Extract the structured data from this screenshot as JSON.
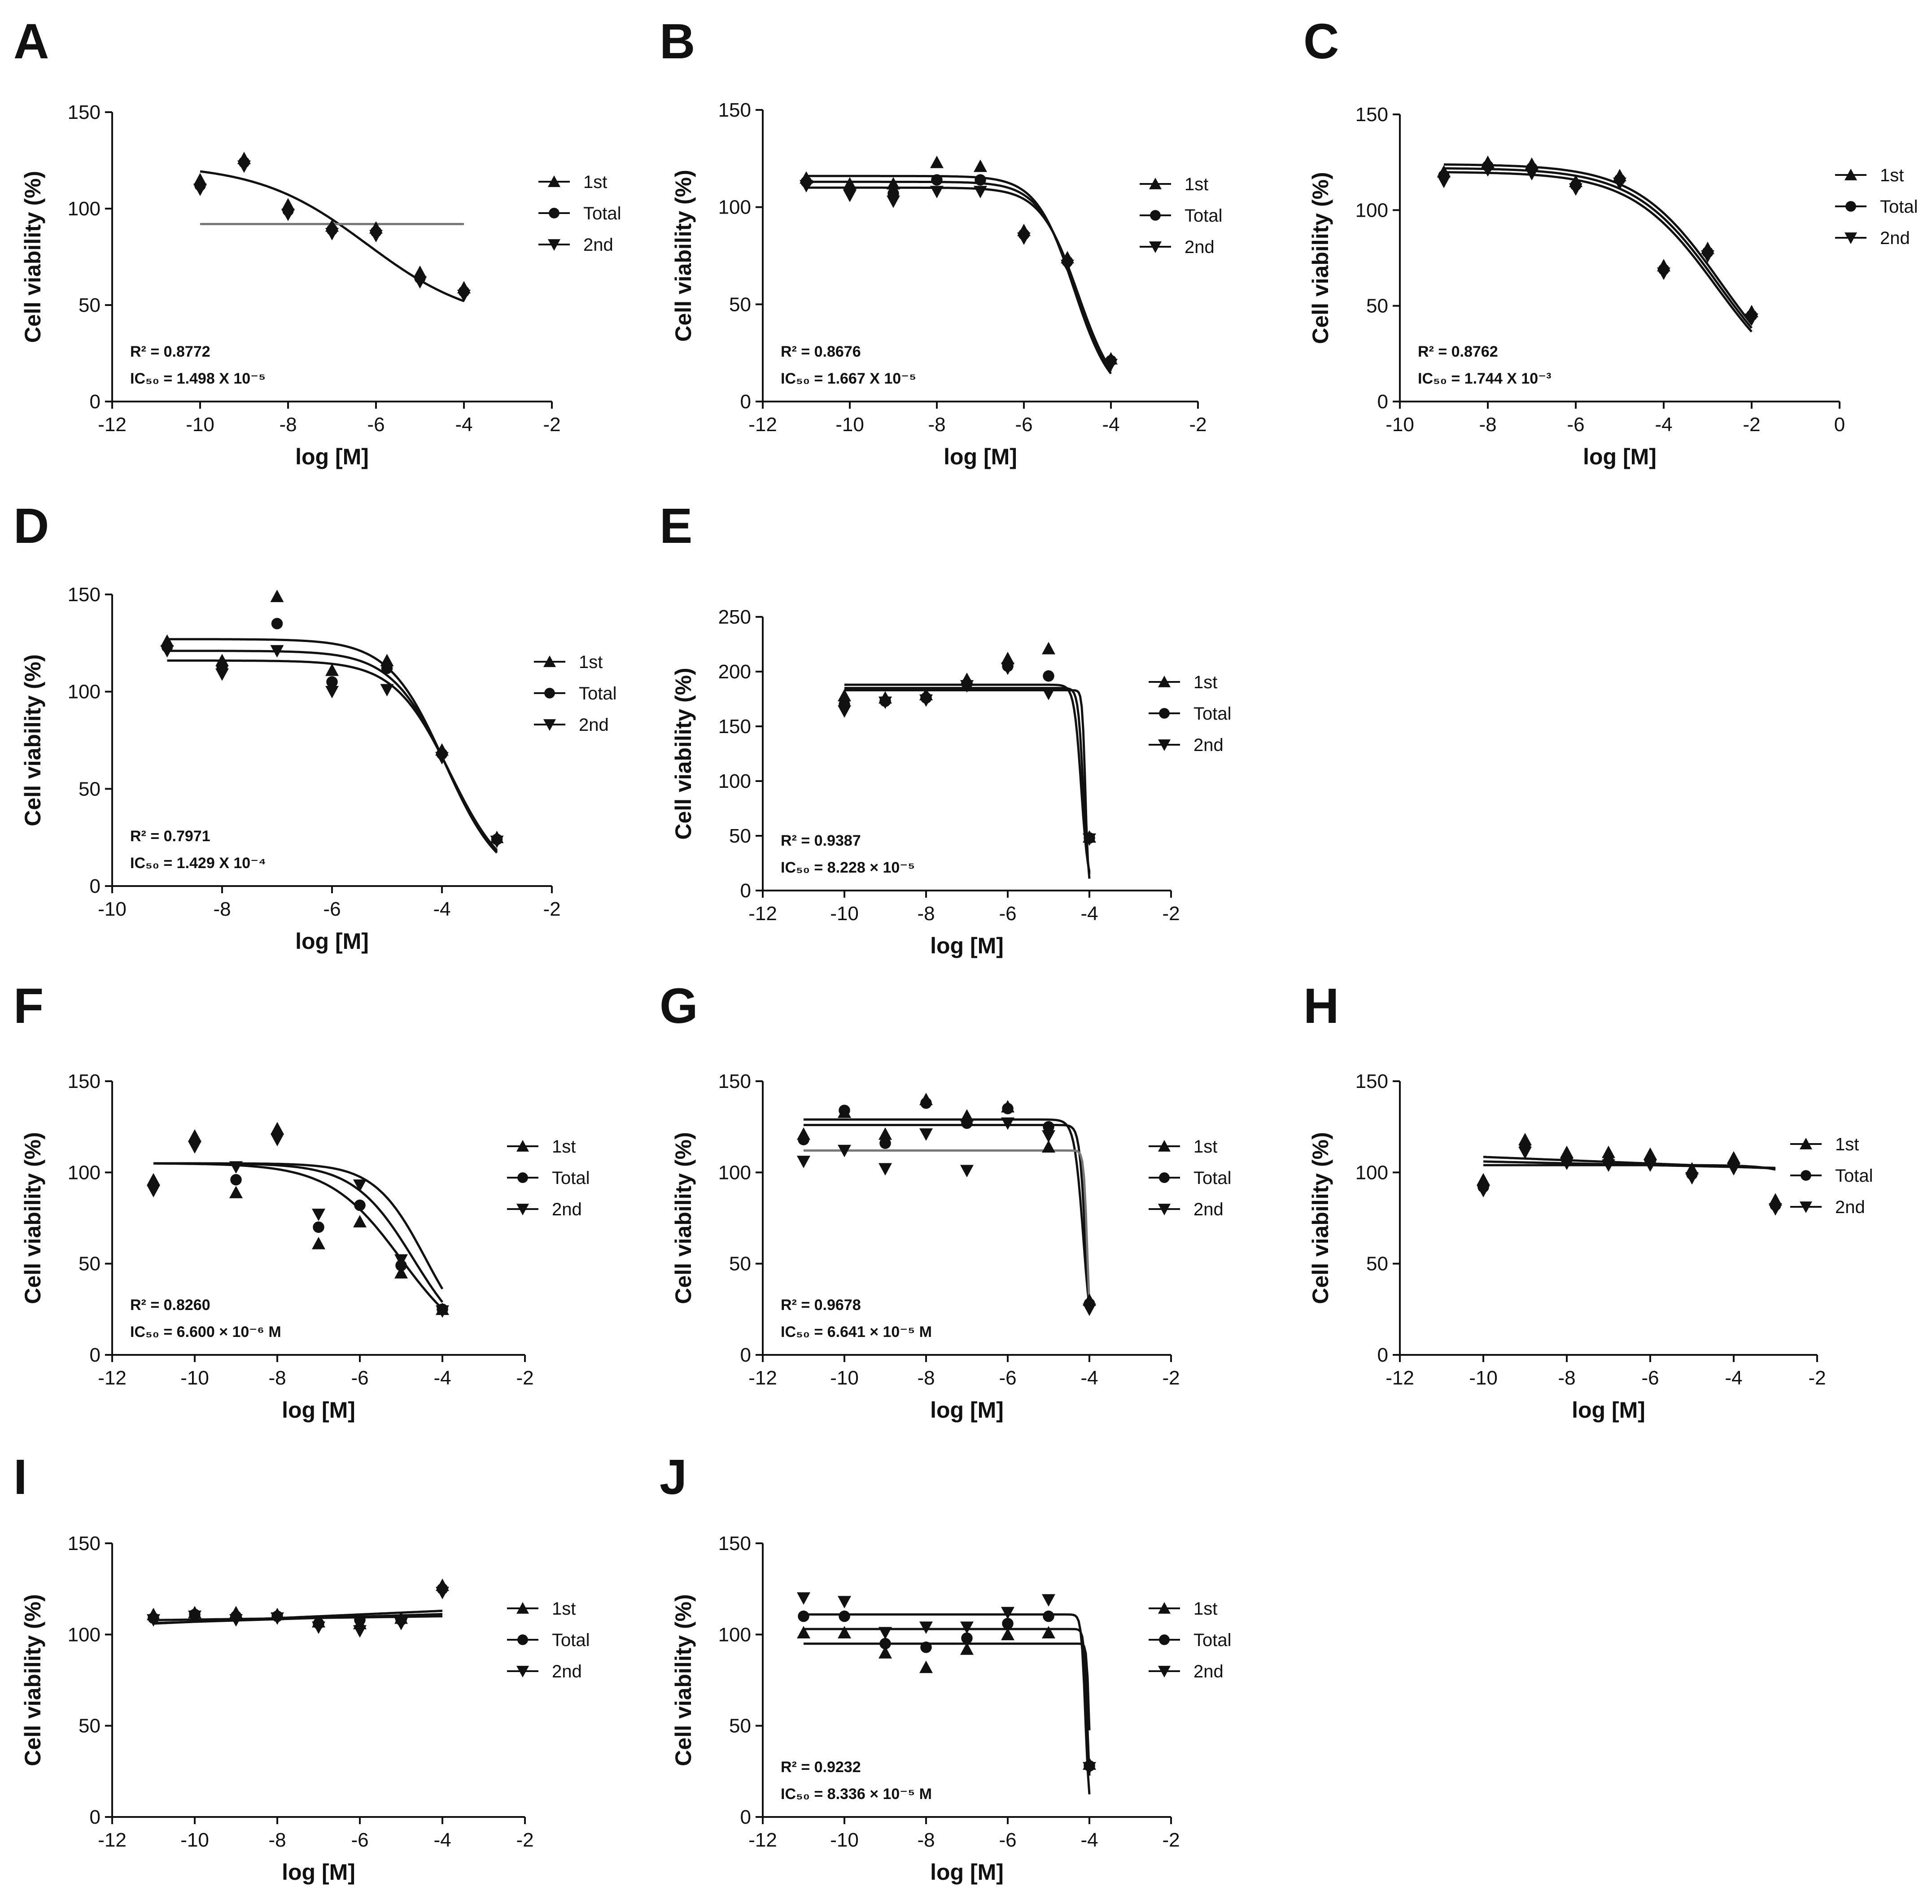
{
  "figure": {
    "legend_labels": [
      "1st",
      "Total",
      "2nd"
    ],
    "colors": {
      "ink": "#111111",
      "gray_line": "#777777"
    }
  },
  "chart_data": [
    {
      "panel": "A",
      "type": "scatter",
      "xlabel": "log [M]",
      "ylabel": "Cell viability (%)",
      "xlim": [
        -12,
        -2
      ],
      "xticks": [
        -12,
        -10,
        -8,
        -6,
        -4,
        -2
      ],
      "ylim": [
        0,
        150
      ],
      "yticks": [
        0,
        50,
        100,
        150
      ],
      "r2": "R² = 0.8772",
      "ic50": "IC₅₀ = 1.498 X 10⁻⁵",
      "x": [
        -10,
        -9,
        -8,
        -7,
        -6,
        -5,
        -4
      ],
      "series": [
        {
          "name": "1st",
          "values": [
            115,
            126,
            102,
            91,
            90,
            67,
            59
          ]
        },
        {
          "name": "Total",
          "values": [
            112,
            124,
            99,
            89,
            88,
            64,
            57
          ]
        },
        {
          "name": "2nd",
          "values": [
            110,
            122,
            97,
            87,
            86,
            62,
            55
          ]
        }
      ],
      "fits": [
        {
          "kind": "sigmoid",
          "top": 123,
          "bottom": 40,
          "logic50": -6.2,
          "hill": -0.35,
          "xmin": -10,
          "xmax": -4,
          "color": "#111111"
        },
        {
          "kind": "linear",
          "slope": 0,
          "intercept": 92,
          "xmin": -10,
          "xmax": -4,
          "color": "#777777"
        }
      ]
    },
    {
      "panel": "B",
      "type": "scatter",
      "xlabel": "log [M]",
      "ylabel": "Cell viability (%)",
      "xlim": [
        -12,
        -2
      ],
      "xticks": [
        -12,
        -10,
        -8,
        -6,
        -4,
        -2
      ],
      "ylim": [
        0,
        150
      ],
      "yticks": [
        0,
        50,
        100,
        150
      ],
      "r2": "R² = 0.8676",
      "ic50": "IC₅₀ = 1.667 X 10⁻⁵",
      "x": [
        -11,
        -10,
        -9,
        -8,
        -7,
        -6,
        -5,
        -4
      ],
      "series": [
        {
          "name": "1st",
          "values": [
            115,
            112,
            112,
            123,
            121,
            88,
            74,
            22
          ]
        },
        {
          "name": "Total",
          "values": [
            113,
            109,
            107,
            114,
            114,
            86,
            72,
            21
          ]
        },
        {
          "name": "2nd",
          "values": [
            111,
            106,
            103,
            108,
            108,
            84,
            70,
            19
          ]
        }
      ],
      "fits": [
        {
          "kind": "sigmoid",
          "top": 116,
          "bottom": 0,
          "logic50": -4.85,
          "hill": -1,
          "xmin": -11,
          "xmax": -4,
          "color": "#111111"
        },
        {
          "kind": "sigmoid",
          "top": 113,
          "bottom": 0,
          "logic50": -4.8,
          "hill": -1,
          "xmin": -11,
          "xmax": -4,
          "color": "#111111"
        },
        {
          "kind": "sigmoid",
          "top": 110,
          "bottom": 0,
          "logic50": -4.75,
          "hill": -1,
          "xmin": -11,
          "xmax": -4,
          "color": "#111111"
        }
      ]
    },
    {
      "panel": "C",
      "type": "scatter",
      "xlabel": "log [M]",
      "ylabel": "Cell viability (%)",
      "xlim": [
        -10,
        0
      ],
      "xticks": [
        -10,
        -8,
        -6,
        -4,
        -2,
        0
      ],
      "ylim": [
        0,
        150
      ],
      "yticks": [
        0,
        50,
        100,
        150
      ],
      "r2": "R² = 0.8762",
      "ic50": "IC₅₀ = 1.744 X 10⁻³",
      "x": [
        -9,
        -8,
        -7,
        -6,
        -5,
        -4,
        -3,
        -2
      ],
      "series": [
        {
          "name": "1st",
          "values": [
            120,
            125,
            124,
            115,
            118,
            71,
            80,
            47
          ]
        },
        {
          "name": "Total",
          "values": [
            118,
            123,
            122,
            113,
            116,
            69,
            78,
            45
          ]
        },
        {
          "name": "2nd",
          "values": [
            115,
            121,
            119,
            111,
            114,
            67,
            76,
            43
          ]
        }
      ],
      "fits": [
        {
          "kind": "sigmoid",
          "top": 124,
          "bottom": 0,
          "logic50": -2.7,
          "hill": -0.45,
          "xmin": -9,
          "xmax": -2,
          "color": "#111111"
        },
        {
          "kind": "sigmoid",
          "top": 122,
          "bottom": 0,
          "logic50": -2.75,
          "hill": -0.45,
          "xmin": -9,
          "xmax": -2,
          "color": "#111111"
        },
        {
          "kind": "sigmoid",
          "top": 120,
          "bottom": 0,
          "logic50": -2.8,
          "hill": -0.45,
          "xmin": -9,
          "xmax": -2,
          "color": "#111111"
        }
      ]
    },
    {
      "panel": "D",
      "type": "scatter",
      "xlabel": "log [M]",
      "ylabel": "Cell viability (%)",
      "xlim": [
        -10,
        -2
      ],
      "xticks": [
        -10,
        -8,
        -6,
        -4,
        -2
      ],
      "ylim": [
        0,
        150
      ],
      "yticks": [
        0,
        50,
        100,
        150
      ],
      "r2": "R² = 0.7971",
      "ic50": "IC₅₀ = 1.429 X 10⁻⁴",
      "x": [
        -9,
        -8,
        -7,
        -6,
        -5,
        -4,
        -3
      ],
      "series": [
        {
          "name": "1st",
          "values": [
            126,
            116,
            149,
            111,
            116,
            70,
            25
          ]
        },
        {
          "name": "Total",
          "values": [
            123,
            113,
            135,
            105,
            112,
            68,
            24
          ]
        },
        {
          "name": "2nd",
          "values": [
            121,
            109,
            121,
            100,
            101,
            66,
            23
          ]
        }
      ],
      "fits": [
        {
          "kind": "sigmoid",
          "top": 127,
          "bottom": 0,
          "logic50": -3.95,
          "hill": -0.85,
          "xmin": -9,
          "xmax": -3,
          "color": "#111111"
        },
        {
          "kind": "sigmoid",
          "top": 121,
          "bottom": 0,
          "logic50": -3.9,
          "hill": -0.85,
          "xmin": -9,
          "xmax": -3,
          "color": "#111111"
        },
        {
          "kind": "sigmoid",
          "top": 116,
          "bottom": 0,
          "logic50": -3.85,
          "hill": -0.85,
          "xmin": -9,
          "xmax": -3,
          "color": "#111111"
        }
      ]
    },
    {
      "panel": "E",
      "type": "scatter",
      "xlabel": "log [M]",
      "ylabel": "Cell viability (%)",
      "xlim": [
        -12,
        -2
      ],
      "xticks": [
        -12,
        -10,
        -8,
        -6,
        -4,
        -2
      ],
      "ylim": [
        0,
        250
      ],
      "yticks": [
        0,
        50,
        100,
        150,
        200,
        250
      ],
      "r2": "R² = 0.9387",
      "ic50": "IC₅₀ = 8.228 × 10⁻⁵",
      "x": [
        -10,
        -9,
        -8,
        -7,
        -6,
        -5,
        -4
      ],
      "series": [
        {
          "name": "1st",
          "values": [
            178,
            176,
            179,
            193,
            212,
            221,
            49
          ]
        },
        {
          "name": "Total",
          "values": [
            170,
            173,
            176,
            189,
            205,
            196,
            48
          ]
        },
        {
          "name": "2nd",
          "values": [
            164,
            172,
            174,
            187,
            203,
            180,
            47
          ]
        }
      ],
      "fits": [
        {
          "kind": "sigmoid",
          "top": 188,
          "bottom": 0,
          "logic50": -4.2,
          "hill": -5,
          "xmin": -10,
          "xmax": -4,
          "color": "#111111"
        },
        {
          "kind": "sigmoid",
          "top": 185,
          "bottom": 0,
          "logic50": -4.15,
          "hill": -7,
          "xmin": -10,
          "xmax": -4,
          "color": "#111111"
        },
        {
          "kind": "sigmoid",
          "top": 183,
          "bottom": 0,
          "logic50": -4.1,
          "hill": -12,
          "xmin": -10,
          "xmax": -4,
          "color": "#111111"
        }
      ]
    },
    {
      "panel": "F",
      "type": "scatter",
      "xlabel": "log [M]",
      "ylabel": "Cell viability (%)",
      "xlim": [
        -12,
        -2
      ],
      "xticks": [
        -12,
        -10,
        -8,
        -6,
        -4,
        -2
      ],
      "ylim": [
        0,
        150
      ],
      "yticks": [
        0,
        50,
        100,
        150
      ],
      "r2": "R² = 0.8260",
      "ic50": "IC₅₀ = 6.600 × 10⁻⁶ M",
      "x": [
        -11,
        -10,
        -9,
        -8,
        -7,
        -6,
        -5,
        -4
      ],
      "series": [
        {
          "name": "1st",
          "values": [
            96,
            120,
            89,
            124,
            61,
            73,
            45,
            25
          ]
        },
        {
          "name": "Total",
          "values": [
            93,
            117,
            96,
            121,
            70,
            82,
            49,
            25
          ]
        },
        {
          "name": "2nd",
          "values": [
            90,
            114,
            103,
            118,
            77,
            93,
            52,
            24
          ]
        }
      ],
      "fits": [
        {
          "kind": "sigmoid",
          "top": 105,
          "bottom": 0,
          "logic50": -5.0,
          "hill": -0.5,
          "xmin": -11,
          "xmax": -4,
          "color": "#111111"
        },
        {
          "kind": "sigmoid",
          "top": 105,
          "bottom": 0,
          "logic50": -4.7,
          "hill": -0.6,
          "xmin": -11,
          "xmax": -4,
          "color": "#111111"
        },
        {
          "kind": "sigmoid",
          "top": 105,
          "bottom": 0,
          "logic50": -4.4,
          "hill": -0.7,
          "xmin": -11,
          "xmax": -4,
          "color": "#111111"
        }
      ]
    },
    {
      "panel": "G",
      "type": "scatter",
      "xlabel": "log [M]",
      "ylabel": "Cell viability (%)",
      "xlim": [
        -12,
        -2
      ],
      "xticks": [
        -12,
        -10,
        -8,
        -6,
        -4,
        -2
      ],
      "ylim": [
        0,
        150
      ],
      "yticks": [
        0,
        50,
        100,
        150
      ],
      "r2": "R² = 0.9678",
      "ic50": "IC₅₀ = 6.641 × 10⁻⁵ M",
      "x": [
        -11,
        -10,
        -9,
        -8,
        -7,
        -6,
        -5,
        -4
      ],
      "series": [
        {
          "name": "1st",
          "values": [
            121,
            133,
            121,
            140,
            131,
            136,
            114,
            30
          ]
        },
        {
          "name": "Total",
          "values": [
            118,
            134,
            116,
            138,
            127,
            135,
            125,
            28
          ]
        },
        {
          "name": "2nd",
          "values": [
            106,
            112,
            102,
            121,
            101,
            127,
            120,
            25
          ]
        }
      ],
      "fits": [
        {
          "kind": "sigmoid",
          "top": 129,
          "bottom": 0,
          "logic50": -4.15,
          "hill": -4,
          "xmin": -11,
          "xmax": -4,
          "color": "#111111"
        },
        {
          "kind": "sigmoid",
          "top": 126,
          "bottom": 0,
          "logic50": -4.1,
          "hill": -6,
          "xmin": -11,
          "xmax": -4,
          "color": "#111111"
        },
        {
          "kind": "sigmoid",
          "top": 112,
          "bottom": 0,
          "logic50": -4.05,
          "hill": -10,
          "xmin": -11,
          "xmax": -4,
          "color": "#777777"
        }
      ]
    },
    {
      "panel": "H",
      "type": "scatter",
      "xlabel": "log [M]",
      "ylabel": "Cell viability (%)",
      "xlim": [
        -12,
        -2
      ],
      "xticks": [
        -12,
        -10,
        -8,
        -6,
        -4,
        -2
      ],
      "ylim": [
        0,
        150
      ],
      "yticks": [
        0,
        50,
        100,
        150
      ],
      "r2": "",
      "ic50": "",
      "x": [
        -10,
        -9,
        -8,
        -7,
        -6,
        -5,
        -4,
        -3
      ],
      "series": [
        {
          "name": "1st",
          "values": [
            96,
            118,
            111,
            111,
            110,
            102,
            108,
            85
          ]
        },
        {
          "name": "Total",
          "values": [
            92,
            115,
            107,
            106,
            106,
            99,
            105,
            82
          ]
        },
        {
          "name": "2nd",
          "values": [
            90,
            111,
            105,
            104,
            104,
            97,
            102,
            80
          ]
        }
      ],
      "fits": [
        {
          "kind": "linear",
          "slope": -0.9,
          "intercept": 99.5,
          "xmin": -10,
          "xmax": -3,
          "color": "#111111"
        },
        {
          "kind": "linear",
          "slope": -0.5,
          "intercept": 101,
          "xmin": -10,
          "xmax": -3,
          "color": "#111111"
        },
        {
          "kind": "sigmoid",
          "top": 104,
          "bottom": 0,
          "logic50": -1.2,
          "hill": -0.9,
          "xmin": -10,
          "xmax": -3,
          "color": "#111111"
        }
      ]
    },
    {
      "panel": "I",
      "type": "scatter",
      "xlabel": "log [M]",
      "ylabel": "Cell viability (%)",
      "xlim": [
        -12,
        -2
      ],
      "xticks": [
        -12,
        -10,
        -8,
        -6,
        -4,
        -2
      ],
      "ylim": [
        0,
        150
      ],
      "yticks": [
        0,
        50,
        100,
        150
      ],
      "r2": "",
      "ic50": "",
      "x": [
        -11,
        -10,
        -9,
        -8,
        -7,
        -6,
        -5,
        -4
      ],
      "series": [
        {
          "name": "1st",
          "values": [
            111,
            112,
            112,
            111,
            107,
            106,
            109,
            127
          ]
        },
        {
          "name": "Total",
          "values": [
            109,
            111,
            110,
            110,
            106,
            108,
            108,
            125
          ]
        },
        {
          "name": "2nd",
          "values": [
            108,
            110,
            108,
            109,
            104,
            102,
            106,
            123
          ]
        }
      ],
      "fits": [
        {
          "kind": "linear",
          "slope": 0.3,
          "intercept": 111.2,
          "xmin": -11,
          "xmax": -4,
          "color": "#111111"
        },
        {
          "kind": "linear",
          "slope": 0.7,
          "intercept": 114,
          "xmin": -11,
          "xmax": -4,
          "color": "#111111"
        },
        {
          "kind": "linear",
          "slope": 1.0,
          "intercept": 117,
          "xmin": -11,
          "xmax": -4,
          "color": "#111111"
        }
      ]
    },
    {
      "panel": "J",
      "type": "scatter",
      "xlabel": "log [M]",
      "ylabel": "Cell viability (%)",
      "xlim": [
        -12,
        -2
      ],
      "xticks": [
        -12,
        -10,
        -8,
        -6,
        -4,
        -2
      ],
      "ylim": [
        0,
        150
      ],
      "yticks": [
        0,
        50,
        100,
        150
      ],
      "r2": "R² = 0.9232",
      "ic50": "IC₅₀ = 8.336 × 10⁻⁵ M",
      "x": [
        -11,
        -10,
        -9,
        -8,
        -7,
        -6,
        -5,
        -4
      ],
      "series": [
        {
          "name": "1st",
          "values": [
            101,
            101,
            90,
            82,
            92,
            100,
            101,
            29
          ]
        },
        {
          "name": "Total",
          "values": [
            110,
            110,
            95,
            93,
            98,
            106,
            110,
            28
          ]
        },
        {
          "name": "2nd",
          "values": [
            120,
            118,
            101,
            104,
            104,
            112,
            119,
            27
          ]
        }
      ],
      "fits": [
        {
          "kind": "sigmoid",
          "top": 111,
          "bottom": 0,
          "logic50": -4.1,
          "hill": -9,
          "xmin": -11,
          "xmax": -4,
          "color": "#111111"
        },
        {
          "kind": "sigmoid",
          "top": 103,
          "bottom": 0,
          "logic50": -4.05,
          "hill": -11,
          "xmin": -11,
          "xmax": -4,
          "color": "#111111"
        },
        {
          "kind": "sigmoid",
          "top": 95,
          "bottom": 0,
          "logic50": -4.0,
          "hill": -14,
          "xmin": -11,
          "xmax": -4,
          "color": "#111111"
        }
      ]
    }
  ]
}
